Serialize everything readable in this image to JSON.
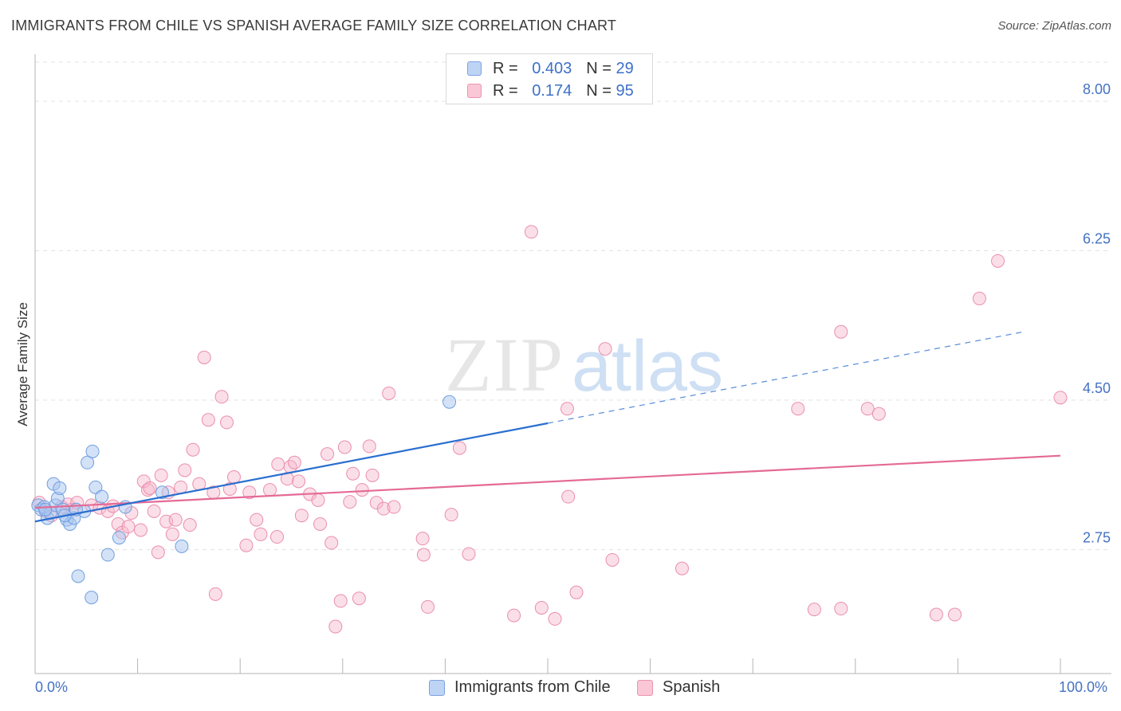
{
  "title": "IMMIGRANTS FROM CHILE VS SPANISH AVERAGE FAMILY SIZE CORRELATION CHART",
  "source": "Source: ZipAtlas.com",
  "watermark": {
    "zip": "ZIP",
    "atlas": "atlas"
  },
  "legend": {
    "r_label": "R =",
    "n_label": "N =",
    "rows": [
      {
        "r": "0.403",
        "n": "29"
      },
      {
        "r": "0.174",
        "n": "95"
      }
    ]
  },
  "bottom_legend": [
    "Immigrants from Chile",
    "Spanish"
  ],
  "x_tick_labels": {
    "left": "0.0%",
    "right": "100.0%"
  },
  "colors": {
    "blue_fill": "#a9c6f0",
    "blue_stroke": "#6f9ee0",
    "blue_line": "#2a6fd0",
    "pink_fill": "#f6b8cc",
    "pink_stroke": "#ea8eae",
    "pink_line": "#e46a96",
    "tick_text": "#4472c4"
  },
  "chart_data": {
    "type": "scatter",
    "title": "IMMIGRANTS FROM CHILE VS SPANISH AVERAGE FAMILY SIZE CORRELATION CHART",
    "xlabel": "",
    "ylabel": "Average Family Size",
    "xlim": [
      0,
      100
    ],
    "ylim": [
      1.3,
      8.55
    ],
    "y_ticks": [
      {
        "value": 2.75,
        "label": "2.75"
      },
      {
        "value": 4.5,
        "label": "4.50"
      },
      {
        "value": 6.25,
        "label": "6.25"
      },
      {
        "value": 8.0,
        "label": "8.00"
      }
    ],
    "series": [
      {
        "name": "Immigrants from Chile",
        "R": 0.403,
        "N": 29,
        "points": [
          [
            0.3,
            3.27
          ],
          [
            0.6,
            3.22
          ],
          [
            0.9,
            3.25
          ],
          [
            1.2,
            3.12
          ],
          [
            1.5,
            3.18
          ],
          [
            1.8,
            3.52
          ],
          [
            2.0,
            3.27
          ],
          [
            2.2,
            3.35
          ],
          [
            2.4,
            3.47
          ],
          [
            2.7,
            3.22
          ],
          [
            3.1,
            3.1
          ],
          [
            3.4,
            3.05
          ],
          [
            3.8,
            3.12
          ],
          [
            4.8,
            3.2
          ],
          [
            5.1,
            3.77
          ],
          [
            5.6,
            3.9
          ],
          [
            5.9,
            3.48
          ],
          [
            6.5,
            3.37
          ],
          [
            7.1,
            2.69
          ],
          [
            8.2,
            2.89
          ],
          [
            8.8,
            3.25
          ],
          [
            12.4,
            3.42
          ],
          [
            14.3,
            2.79
          ],
          [
            4.2,
            2.44
          ],
          [
            5.5,
            2.19
          ],
          [
            4.0,
            3.22
          ],
          [
            2.9,
            3.15
          ],
          [
            1.0,
            3.22
          ],
          [
            40.4,
            4.48
          ]
        ],
        "trend": {
          "x0": 0,
          "y0": 3.08,
          "x1": 50,
          "y1": 4.23,
          "dash_to_x": 96.4,
          "dash_to_y": 5.3
        }
      },
      {
        "name": "Spanish",
        "R": 0.174,
        "N": 95,
        "points": [
          [
            0.4,
            3.3
          ],
          [
            1.0,
            3.2
          ],
          [
            1.6,
            3.15
          ],
          [
            2.6,
            3.25
          ],
          [
            3.2,
            3.28
          ],
          [
            3.6,
            3.22
          ],
          [
            4.1,
            3.3
          ],
          [
            5.5,
            3.27
          ],
          [
            6.3,
            3.24
          ],
          [
            7.1,
            3.2
          ],
          [
            7.6,
            3.26
          ],
          [
            8.1,
            3.05
          ],
          [
            8.5,
            2.95
          ],
          [
            9.1,
            3.02
          ],
          [
            9.4,
            3.18
          ],
          [
            10.3,
            2.98
          ],
          [
            10.6,
            3.55
          ],
          [
            11.0,
            3.45
          ],
          [
            11.2,
            3.47
          ],
          [
            11.6,
            3.2
          ],
          [
            12.0,
            2.72
          ],
          [
            12.3,
            3.62
          ],
          [
            12.8,
            3.08
          ],
          [
            13.0,
            3.42
          ],
          [
            13.4,
            2.93
          ],
          [
            13.7,
            3.1
          ],
          [
            14.2,
            3.48
          ],
          [
            14.6,
            3.68
          ],
          [
            15.1,
            3.04
          ],
          [
            15.4,
            3.92
          ],
          [
            16.0,
            3.52
          ],
          [
            16.5,
            5.0
          ],
          [
            16.9,
            4.27
          ],
          [
            17.4,
            3.42
          ],
          [
            17.6,
            2.23
          ],
          [
            18.2,
            4.54
          ],
          [
            18.7,
            4.24
          ],
          [
            19.0,
            3.46
          ],
          [
            19.4,
            3.6
          ],
          [
            20.6,
            2.8
          ],
          [
            20.9,
            3.42
          ],
          [
            21.6,
            3.1
          ],
          [
            22.0,
            2.93
          ],
          [
            22.9,
            3.45
          ],
          [
            23.6,
            2.9
          ],
          [
            23.7,
            3.75
          ],
          [
            24.6,
            3.58
          ],
          [
            24.9,
            3.72
          ],
          [
            25.3,
            3.77
          ],
          [
            25.7,
            3.55
          ],
          [
            26.0,
            3.15
          ],
          [
            26.8,
            3.4
          ],
          [
            27.6,
            3.33
          ],
          [
            27.8,
            3.05
          ],
          [
            28.5,
            3.87
          ],
          [
            28.9,
            2.83
          ],
          [
            29.3,
            1.85
          ],
          [
            29.8,
            2.15
          ],
          [
            30.2,
            3.95
          ],
          [
            30.7,
            3.31
          ],
          [
            31.0,
            3.64
          ],
          [
            31.6,
            2.18
          ],
          [
            31.9,
            3.45
          ],
          [
            32.6,
            3.96
          ],
          [
            32.9,
            3.62
          ],
          [
            33.3,
            3.3
          ],
          [
            34.0,
            3.23
          ],
          [
            34.5,
            4.58
          ],
          [
            35.0,
            3.25
          ],
          [
            37.8,
            2.88
          ],
          [
            37.9,
            2.69
          ],
          [
            38.3,
            2.08
          ],
          [
            40.6,
            3.16
          ],
          [
            41.4,
            3.94
          ],
          [
            42.3,
            2.7
          ],
          [
            46.7,
            1.98
          ],
          [
            48.4,
            6.47
          ],
          [
            49.4,
            2.07
          ],
          [
            50.7,
            1.94
          ],
          [
            51.9,
            4.4
          ],
          [
            52.8,
            2.25
          ],
          [
            52.0,
            3.37
          ],
          [
            55.6,
            5.1
          ],
          [
            56.3,
            2.63
          ],
          [
            63.1,
            2.53
          ],
          [
            76.0,
            2.05
          ],
          [
            74.4,
            4.4
          ],
          [
            78.6,
            2.06
          ],
          [
            81.2,
            4.4
          ],
          [
            82.3,
            4.34
          ],
          [
            78.6,
            5.3
          ],
          [
            87.9,
            1.99
          ],
          [
            89.7,
            1.99
          ],
          [
            92.1,
            5.69
          ],
          [
            93.9,
            6.13
          ],
          [
            100.0,
            4.53
          ]
        ],
        "trend": {
          "x0": 0,
          "y0": 3.24,
          "x1": 100,
          "y1": 3.85
        }
      }
    ]
  }
}
